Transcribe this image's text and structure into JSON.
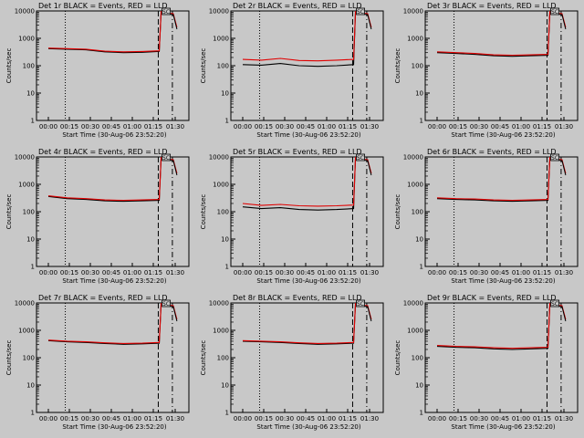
{
  "chart_data": [
    {
      "type": "line",
      "title": "Det 1r BLACK = Events, RED = LLD",
      "xlabel": "Start Time (30-Aug-06 23:52:20)",
      "ylabel": "Counts/sec",
      "yscale": "log",
      "ylim": [
        1,
        10000
      ],
      "x_ticks": [
        "00:00",
        "00:15",
        "00:30",
        "00:45",
        "01:00",
        "01:15",
        "01:30"
      ],
      "y_ticks": [
        "1",
        "10",
        "100",
        "1000",
        "10000"
      ],
      "black": [
        [
          0,
          420
        ],
        [
          20,
          400
        ],
        [
          40,
          380
        ],
        [
          60,
          320
        ],
        [
          80,
          300
        ],
        [
          100,
          310
        ],
        [
          118,
          330
        ],
        [
          120,
          10000
        ]
      ],
      "red": [
        [
          0,
          440
        ],
        [
          20,
          420
        ],
        [
          40,
          400
        ],
        [
          60,
          340
        ],
        [
          80,
          320
        ],
        [
          100,
          330
        ],
        [
          118,
          350
        ],
        [
          120,
          10000
        ]
      ],
      "marker": "SC"
    },
    {
      "type": "line",
      "title": "Det 2r BLACK = Events, RED = LLD",
      "xlabel": "Start Time (30-Aug-06 23:52:20)",
      "ylabel": "Counts/sec",
      "yscale": "log",
      "ylim": [
        1,
        10000
      ],
      "x_ticks": [
        "00:00",
        "00:15",
        "00:30",
        "00:45",
        "01:00",
        "01:15",
        "01:30"
      ],
      "y_ticks": [
        "1",
        "10",
        "100",
        "1000",
        "10000"
      ],
      "black": [
        [
          0,
          110
        ],
        [
          20,
          105
        ],
        [
          40,
          120
        ],
        [
          60,
          100
        ],
        [
          80,
          95
        ],
        [
          100,
          100
        ],
        [
          118,
          110
        ],
        [
          120,
          10000
        ]
      ],
      "red": [
        [
          0,
          170
        ],
        [
          20,
          160
        ],
        [
          40,
          185
        ],
        [
          60,
          155
        ],
        [
          80,
          150
        ],
        [
          100,
          160
        ],
        [
          118,
          170
        ],
        [
          120,
          10000
        ]
      ],
      "marker": "SC"
    },
    {
      "type": "line",
      "title": "Det 3r BLACK = Events, RED = LLD",
      "xlabel": "Start Time (30-Aug-06 23:52:20)",
      "ylabel": "Counts/sec",
      "yscale": "log",
      "ylim": [
        1,
        10000
      ],
      "x_ticks": [
        "00:00",
        "00:15",
        "00:30",
        "00:45",
        "01:00",
        "01:15",
        "01:30"
      ],
      "y_ticks": [
        "1",
        "10",
        "100",
        "1000",
        "10000"
      ],
      "black": [
        [
          0,
          300
        ],
        [
          20,
          280
        ],
        [
          40,
          260
        ],
        [
          60,
          230
        ],
        [
          80,
          220
        ],
        [
          100,
          230
        ],
        [
          118,
          240
        ],
        [
          120,
          10000
        ]
      ],
      "red": [
        [
          0,
          320
        ],
        [
          20,
          300
        ],
        [
          40,
          280
        ],
        [
          60,
          250
        ],
        [
          80,
          240
        ],
        [
          100,
          250
        ],
        [
          118,
          260
        ],
        [
          120,
          10000
        ]
      ],
      "marker": "SC"
    },
    {
      "type": "line",
      "title": "Det 4r BLACK = Events, RED = LLD",
      "xlabel": "Start Time (30-Aug-06 23:52:20)",
      "ylabel": "Counts/sec",
      "yscale": "log",
      "ylim": [
        1,
        10000
      ],
      "x_ticks": [
        "00:00",
        "00:15",
        "00:30",
        "00:45",
        "01:00",
        "01:15",
        "01:30"
      ],
      "y_ticks": [
        "1",
        "10",
        "100",
        "1000",
        "10000"
      ],
      "black": [
        [
          0,
          360
        ],
        [
          20,
          300
        ],
        [
          40,
          280
        ],
        [
          60,
          250
        ],
        [
          80,
          240
        ],
        [
          100,
          250
        ],
        [
          118,
          260
        ],
        [
          120,
          10000
        ]
      ],
      "red": [
        [
          0,
          380
        ],
        [
          20,
          320
        ],
        [
          40,
          300
        ],
        [
          60,
          270
        ],
        [
          80,
          260
        ],
        [
          100,
          270
        ],
        [
          118,
          280
        ],
        [
          120,
          10000
        ]
      ],
      "marker": "SC"
    },
    {
      "type": "line",
      "title": "Det 5r BLACK = Events, RED = LLD",
      "xlabel": "Start Time (30-Aug-06 23:52:20)",
      "ylabel": "Counts/sec",
      "yscale": "log",
      "ylim": [
        1,
        10000
      ],
      "x_ticks": [
        "00:00",
        "00:15",
        "00:30",
        "00:45",
        "01:00",
        "01:15",
        "01:30"
      ],
      "y_ticks": [
        "1",
        "10",
        "100",
        "1000",
        "10000"
      ],
      "black": [
        [
          0,
          150
        ],
        [
          20,
          130
        ],
        [
          40,
          140
        ],
        [
          60,
          120
        ],
        [
          80,
          115
        ],
        [
          100,
          120
        ],
        [
          118,
          130
        ],
        [
          120,
          10000
        ]
      ],
      "red": [
        [
          0,
          200
        ],
        [
          20,
          170
        ],
        [
          40,
          185
        ],
        [
          60,
          165
        ],
        [
          80,
          160
        ],
        [
          100,
          165
        ],
        [
          118,
          175
        ],
        [
          120,
          10000
        ]
      ],
      "marker": "SC"
    },
    {
      "type": "line",
      "title": "Det 6r BLACK = Events, RED = LLD",
      "xlabel": "Start Time (30-Aug-06 23:52:20)",
      "ylabel": "Counts/sec",
      "yscale": "log",
      "ylim": [
        1,
        10000
      ],
      "x_ticks": [
        "00:00",
        "00:15",
        "00:30",
        "00:45",
        "01:00",
        "01:15",
        "01:30"
      ],
      "y_ticks": [
        "1",
        "10",
        "100",
        "1000",
        "10000"
      ],
      "black": [
        [
          0,
          300
        ],
        [
          20,
          280
        ],
        [
          40,
          270
        ],
        [
          60,
          250
        ],
        [
          80,
          240
        ],
        [
          100,
          250
        ],
        [
          118,
          260
        ],
        [
          120,
          10000
        ]
      ],
      "red": [
        [
          0,
          320
        ],
        [
          20,
          300
        ],
        [
          40,
          290
        ],
        [
          60,
          270
        ],
        [
          80,
          260
        ],
        [
          100,
          270
        ],
        [
          118,
          280
        ],
        [
          120,
          10000
        ]
      ],
      "marker": "SC"
    },
    {
      "type": "line",
      "title": "Det 7r BLACK = Events, RED = LLD",
      "xlabel": "Start Time (30-Aug-06 23:52:20)",
      "ylabel": "Counts/sec",
      "yscale": "log",
      "ylim": [
        1,
        10000
      ],
      "x_ticks": [
        "00:00",
        "00:15",
        "00:30",
        "00:45",
        "01:00",
        "01:15",
        "01:30"
      ],
      "y_ticks": [
        "1",
        "10",
        "100",
        "1000",
        "10000"
      ],
      "black": [
        [
          0,
          420
        ],
        [
          20,
          380
        ],
        [
          40,
          360
        ],
        [
          60,
          330
        ],
        [
          80,
          310
        ],
        [
          100,
          320
        ],
        [
          118,
          340
        ],
        [
          120,
          10000
        ]
      ],
      "red": [
        [
          0,
          440
        ],
        [
          20,
          400
        ],
        [
          40,
          380
        ],
        [
          60,
          350
        ],
        [
          80,
          330
        ],
        [
          100,
          340
        ],
        [
          118,
          360
        ],
        [
          120,
          10000
        ]
      ],
      "marker": "SC"
    },
    {
      "type": "line",
      "title": "Det 8r BLACK = Events, RED = LLD",
      "xlabel": "Start Time (30-Aug-06 23:52:20)",
      "ylabel": "Counts/sec",
      "yscale": "log",
      "ylim": [
        1,
        10000
      ],
      "x_ticks": [
        "00:00",
        "00:15",
        "00:30",
        "00:45",
        "01:00",
        "01:15",
        "01:30"
      ],
      "y_ticks": [
        "1",
        "10",
        "100",
        "1000",
        "10000"
      ],
      "black": [
        [
          0,
          400
        ],
        [
          20,
          380
        ],
        [
          40,
          360
        ],
        [
          60,
          330
        ],
        [
          80,
          310
        ],
        [
          100,
          320
        ],
        [
          118,
          340
        ],
        [
          120,
          10000
        ]
      ],
      "red": [
        [
          0,
          420
        ],
        [
          20,
          400
        ],
        [
          40,
          380
        ],
        [
          60,
          350
        ],
        [
          80,
          330
        ],
        [
          100,
          340
        ],
        [
          118,
          360
        ],
        [
          120,
          10000
        ]
      ],
      "marker": "SC"
    },
    {
      "type": "line",
      "title": "Det 9r BLACK = Events, RED = LLD",
      "xlabel": "Start Time (30-Aug-06 23:52:20)",
      "ylabel": "Counts/sec",
      "yscale": "log",
      "ylim": [
        1,
        10000
      ],
      "x_ticks": [
        "00:00",
        "00:15",
        "00:30",
        "00:45",
        "01:00",
        "01:15",
        "01:30"
      ],
      "y_ticks": [
        "1",
        "10",
        "100",
        "1000",
        "10000"
      ],
      "black": [
        [
          0,
          260
        ],
        [
          20,
          240
        ],
        [
          40,
          230
        ],
        [
          60,
          210
        ],
        [
          80,
          200
        ],
        [
          100,
          210
        ],
        [
          118,
          220
        ],
        [
          120,
          10000
        ]
      ],
      "red": [
        [
          0,
          280
        ],
        [
          20,
          260
        ],
        [
          40,
          250
        ],
        [
          60,
          230
        ],
        [
          80,
          220
        ],
        [
          100,
          230
        ],
        [
          118,
          240
        ],
        [
          120,
          10000
        ]
      ],
      "marker": "SC"
    }
  ]
}
